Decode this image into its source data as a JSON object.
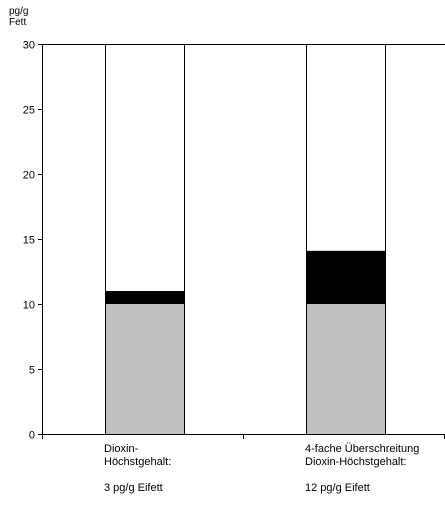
{
  "chart_data": {
    "type": "bar",
    "stacked": true,
    "ylabel": "pg/g\nFett",
    "ylim": [
      0,
      30
    ],
    "yticks": [
      0,
      5,
      10,
      15,
      20,
      25,
      30
    ],
    "grid": false,
    "categories": [
      {
        "lines": [
          "Dioxin-",
          "Höchstgehalt:"
        ],
        "note": "3 pg/g Eifett"
      },
      {
        "lines": [
          "4-fache Überschreitung",
          "Dioxin-Höchstgehalt:"
        ],
        "note": "12 pg/g Eifett"
      }
    ],
    "series": [
      {
        "color": "#c0c0c0",
        "values": [
          10,
          10
        ]
      },
      {
        "color": "#000000",
        "values": [
          1,
          4.1
        ]
      },
      {
        "color": "#ffffff",
        "values": [
          19,
          15.9
        ]
      }
    ]
  }
}
